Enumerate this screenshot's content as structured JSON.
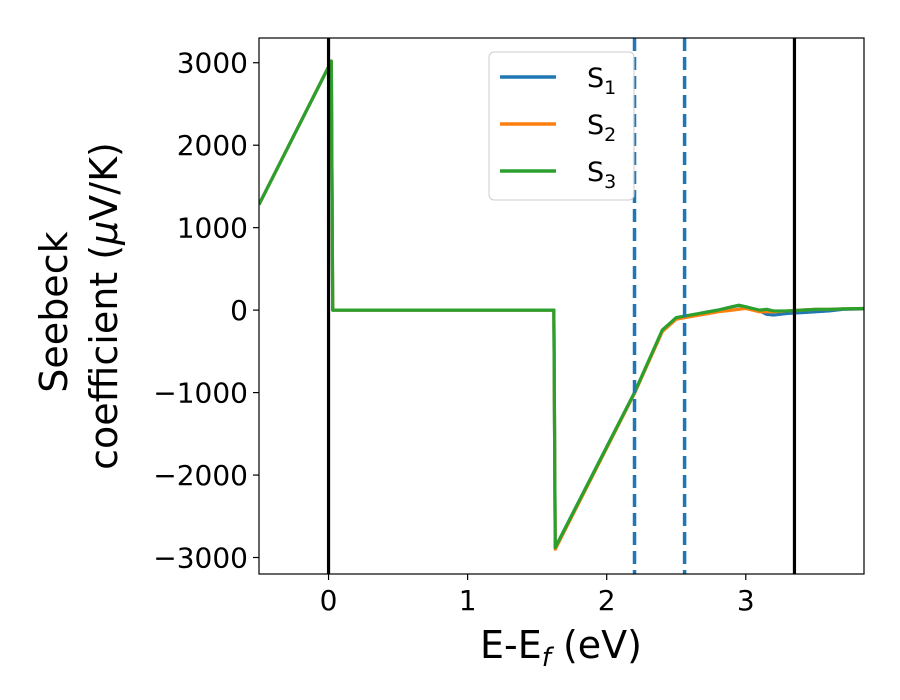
{
  "chart_data": {
    "type": "line",
    "xlabel": {
      "main": "E-E",
      "sub": "f",
      "unit": " (eV)"
    },
    "ylabel": {
      "line1": "Seebeck",
      "line2": "coefficient  (",
      "mu": "μ",
      "unit": "V/K)"
    },
    "xlim": [
      -0.5,
      3.85
    ],
    "ylim": [
      -3200,
      3300
    ],
    "xticks": [
      0,
      1,
      2,
      3
    ],
    "xtick_labels": [
      "0",
      "1",
      "2",
      "3"
    ],
    "yticks": [
      3000,
      2000,
      1000,
      0,
      -1000,
      -2000,
      -3000
    ],
    "ytick_labels": [
      "3000",
      "2000",
      "1000",
      "0",
      "−1000",
      "−2000",
      "−3000"
    ],
    "grid": false,
    "legend_position": "top-center",
    "series": [
      {
        "name": "S",
        "sub": "1",
        "color": "#1f77b4",
        "points": [
          [
            -0.5,
            1280
          ],
          [
            0,
            2950
          ],
          [
            0.02,
            3020
          ],
          [
            0.03,
            0
          ],
          [
            1.62,
            0
          ],
          [
            1.63,
            -2880
          ],
          [
            2.2,
            -1000
          ],
          [
            2.4,
            -250
          ],
          [
            2.5,
            -100
          ],
          [
            2.6,
            -70
          ],
          [
            2.7,
            -30
          ],
          [
            2.8,
            0
          ],
          [
            2.9,
            40
          ],
          [
            2.95,
            55
          ],
          [
            3.0,
            40
          ],
          [
            3.1,
            -10
          ],
          [
            3.15,
            -50
          ],
          [
            3.2,
            -60
          ],
          [
            3.3,
            -40
          ],
          [
            3.4,
            -30
          ],
          [
            3.5,
            -20
          ],
          [
            3.6,
            -10
          ],
          [
            3.7,
            10
          ],
          [
            3.85,
            15
          ]
        ]
      },
      {
        "name": "S",
        "sub": "2",
        "color": "#ff7f0e",
        "points": [
          [
            -0.5,
            1280
          ],
          [
            0,
            2950
          ],
          [
            0.02,
            3020
          ],
          [
            0.03,
            0
          ],
          [
            1.62,
            0
          ],
          [
            1.63,
            -2900
          ],
          [
            2.2,
            -1010
          ],
          [
            2.4,
            -260
          ],
          [
            2.5,
            -110
          ],
          [
            2.6,
            -80
          ],
          [
            2.7,
            -50
          ],
          [
            2.8,
            -20
          ],
          [
            2.9,
            0
          ],
          [
            3.0,
            20
          ],
          [
            3.1,
            -20
          ],
          [
            3.2,
            -20
          ],
          [
            3.3,
            -10
          ],
          [
            3.4,
            0
          ],
          [
            3.5,
            10
          ],
          [
            3.6,
            10
          ],
          [
            3.7,
            15
          ],
          [
            3.85,
            20
          ]
        ]
      },
      {
        "name": "S",
        "sub": "3",
        "color": "#2ca02c",
        "points": [
          [
            -0.5,
            1280
          ],
          [
            0,
            2950
          ],
          [
            0.02,
            3020
          ],
          [
            0.03,
            0
          ],
          [
            1.62,
            0
          ],
          [
            1.63,
            -2880
          ],
          [
            2.2,
            -1000
          ],
          [
            2.4,
            -240
          ],
          [
            2.5,
            -90
          ],
          [
            2.6,
            -60
          ],
          [
            2.7,
            -30
          ],
          [
            2.8,
            0
          ],
          [
            2.9,
            40
          ],
          [
            2.95,
            60
          ],
          [
            3.0,
            40
          ],
          [
            3.1,
            0
          ],
          [
            3.15,
            10
          ],
          [
            3.2,
            -10
          ],
          [
            3.3,
            -10
          ],
          [
            3.4,
            0
          ],
          [
            3.5,
            10
          ],
          [
            3.6,
            10
          ],
          [
            3.7,
            15
          ],
          [
            3.85,
            20
          ]
        ]
      }
    ],
    "vlines": [
      {
        "x": 0,
        "style": "solid",
        "color": "#000000"
      },
      {
        "x": 3.35,
        "style": "solid",
        "color": "#000000"
      },
      {
        "x": 2.2,
        "style": "dashed",
        "color": "#1f77b4"
      },
      {
        "x": 2.56,
        "style": "dashed",
        "color": "#1f77b4"
      }
    ]
  }
}
